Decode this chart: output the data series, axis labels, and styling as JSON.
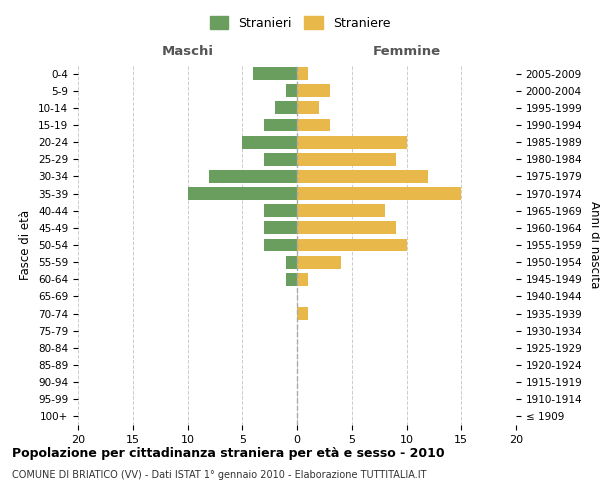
{
  "age_groups": [
    "100+",
    "95-99",
    "90-94",
    "85-89",
    "80-84",
    "75-79",
    "70-74",
    "65-69",
    "60-64",
    "55-59",
    "50-54",
    "45-49",
    "40-44",
    "35-39",
    "30-34",
    "25-29",
    "20-24",
    "15-19",
    "10-14",
    "5-9",
    "0-4"
  ],
  "birth_years": [
    "≤ 1909",
    "1910-1914",
    "1915-1919",
    "1920-1924",
    "1925-1929",
    "1930-1934",
    "1935-1939",
    "1940-1944",
    "1945-1949",
    "1950-1954",
    "1955-1959",
    "1960-1964",
    "1965-1969",
    "1970-1974",
    "1975-1979",
    "1980-1984",
    "1985-1989",
    "1990-1994",
    "1995-1999",
    "2000-2004",
    "2005-2009"
  ],
  "maschi": [
    0,
    0,
    0,
    0,
    0,
    0,
    0,
    0,
    1,
    1,
    3,
    3,
    3,
    10,
    8,
    3,
    5,
    3,
    2,
    1,
    4
  ],
  "femmine": [
    0,
    0,
    0,
    0,
    0,
    0,
    1,
    0,
    1,
    4,
    10,
    9,
    8,
    15,
    12,
    9,
    10,
    3,
    2,
    3,
    1
  ],
  "maschi_color": "#6a9e5e",
  "femmine_color": "#e8b84b",
  "title": "Popolazione per cittadinanza straniera per età e sesso - 2010",
  "subtitle": "COMUNE DI BRIATICO (VV) - Dati ISTAT 1° gennaio 2010 - Elaborazione TUTTITALIA.IT",
  "legend_maschi": "Stranieri",
  "legend_femmine": "Straniere",
  "xlabel_left": "Maschi",
  "xlabel_right": "Femmine",
  "ylabel_left": "Fasce di età",
  "ylabel_right": "Anni di nascita",
  "xlim": 20,
  "background_color": "#ffffff",
  "grid_color": "#cccccc"
}
